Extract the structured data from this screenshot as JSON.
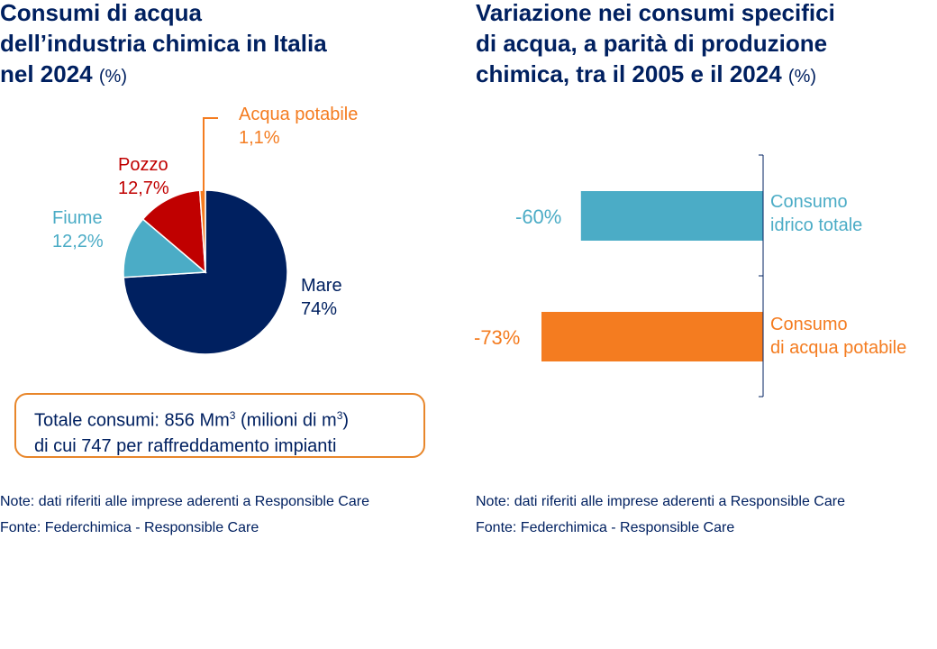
{
  "left": {
    "title_lines": [
      "Consumi di acqua",
      "dell’industria chimica in Italia",
      "nel 2024"
    ],
    "title_unit": "(%)",
    "total_box": {
      "line1_prefix": "Totale consumi: 856 Mm",
      "line1_sup1": "3",
      "line1_mid": " (milioni di m",
      "line1_sup2": "3",
      "line1_suffix": ")",
      "line2": "di cui 747 per raffreddamento impianti"
    },
    "note": "Note: dati riferiti alle imprese aderenti a Responsible Care",
    "source": "Fonte: Federchimica - Responsible Care"
  },
  "right": {
    "title_lines": [
      "Variazione nei consumi specifici",
      "di acqua, a parità di produzione",
      "chimica, tra il 2005 e il 2024"
    ],
    "title_unit": "(%)",
    "note": "Note: dati riferiti alle imprese aderenti a Responsible Care",
    "source": "Fonte: Federchimica - Responsible Care"
  },
  "chart_data": [
    {
      "type": "pie",
      "title": "Consumi di acqua dell’industria chimica in Italia nel 2024 (%)",
      "slices": [
        {
          "key": "mare",
          "name": "Mare",
          "value": 74,
          "label": "74%",
          "color": "#002060"
        },
        {
          "key": "fiume",
          "name": "Fiume",
          "value": 12.2,
          "label": "12,2%",
          "color": "#4bacc6"
        },
        {
          "key": "pozzo",
          "name": "Pozzo",
          "value": 12.7,
          "label": "12,7%",
          "color": "#c00000"
        },
        {
          "key": "potabile",
          "name": "Acqua potabile",
          "value": 1.1,
          "label": "1,1%",
          "color": "#f47c20"
        }
      ]
    },
    {
      "type": "bar",
      "orientation": "horizontal",
      "title": "Variazione nei consumi specifici di acqua, a parità di produzione chimica, tra il 2005 e il 2024 (%)",
      "xlim": [
        -80,
        0
      ],
      "bars": [
        {
          "key": "totale",
          "name_lines": [
            "Consumo",
            "idrico totale"
          ],
          "value": -60,
          "label": "-60%",
          "color": "#4bacc6"
        },
        {
          "key": "potabile",
          "name_lines": [
            "Consumo",
            "di acqua potabile"
          ],
          "value": -73,
          "label": "-73%",
          "color": "#f47c20"
        }
      ]
    }
  ]
}
